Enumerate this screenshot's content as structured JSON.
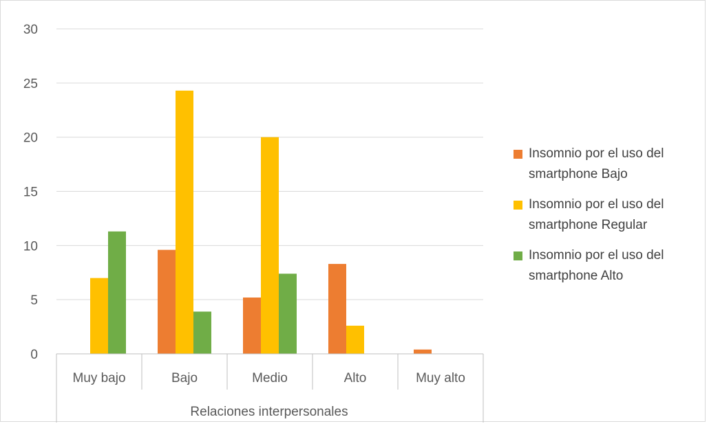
{
  "chart_data": {
    "type": "bar",
    "title": "",
    "xlabel": "Relaciones interpersonales",
    "ylabel": "",
    "categories": [
      "Muy bajo",
      "Bajo",
      "Medio",
      "Alto",
      "Muy alto"
    ],
    "ylim": [
      0,
      30
    ],
    "yticks": [
      0,
      5,
      10,
      15,
      20,
      25,
      30
    ],
    "grid": true,
    "legend_position": "right",
    "series": [
      {
        "name": "Insomnio por el uso del smartphone Bajo",
        "line1": "Insomnio por el uso del",
        "line2": "smartphone Bajo",
        "color": "#ed7d31",
        "values": [
          0,
          9.6,
          5.2,
          8.3,
          0.4
        ]
      },
      {
        "name": "Insomnio por el uso del smartphone Regular",
        "line1": "Insomnio por el uso del",
        "line2": "smartphone Regular",
        "color": "#ffc000",
        "values": [
          7.0,
          24.3,
          20.0,
          2.6,
          0
        ]
      },
      {
        "name": "Insomnio por el uso del smartphone Alto",
        "line1": "Insomnio por el uso del",
        "line2": "smartphone Alto",
        "color": "#70ad47",
        "values": [
          11.3,
          3.9,
          7.4,
          0,
          0
        ]
      }
    ]
  }
}
